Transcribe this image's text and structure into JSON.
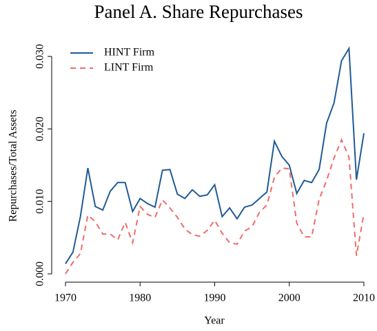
{
  "chart_data": {
    "type": "line",
    "title": "Panel A. Share Repurchases",
    "x_label": "Year",
    "y_label": "Repurchases/Total Assets",
    "x": [
      1970,
      1971,
      1972,
      1973,
      1974,
      1975,
      1976,
      1977,
      1978,
      1979,
      1980,
      1981,
      1982,
      1983,
      1984,
      1985,
      1986,
      1987,
      1988,
      1989,
      1990,
      1991,
      1992,
      1993,
      1994,
      1995,
      1996,
      1997,
      1998,
      1999,
      2000,
      2001,
      2002,
      2003,
      2004,
      2005,
      2006,
      2007,
      2008,
      2009,
      2010
    ],
    "series": [
      {
        "name": "HINT Firm",
        "color": "#1f5a96",
        "dash": false,
        "values": [
          0.0014,
          0.003,
          0.0079,
          0.0146,
          0.0093,
          0.0088,
          0.0114,
          0.0126,
          0.0126,
          0.0086,
          0.0104,
          0.0097,
          0.0092,
          0.0143,
          0.0144,
          0.011,
          0.0104,
          0.0116,
          0.0107,
          0.0109,
          0.0123,
          0.0079,
          0.0091,
          0.0076,
          0.0092,
          0.0095,
          0.0104,
          0.0113,
          0.0183,
          0.0162,
          0.015,
          0.0111,
          0.0129,
          0.0126,
          0.0144,
          0.0208,
          0.0236,
          0.0294,
          0.0311,
          0.013,
          0.0194
        ]
      },
      {
        "name": "LINT Firm",
        "color": "#f06a6a",
        "dash": true,
        "values": [
          0.0,
          0.0016,
          0.0028,
          0.0081,
          0.0072,
          0.0055,
          0.0055,
          0.0047,
          0.0071,
          0.0043,
          0.0093,
          0.0082,
          0.0078,
          0.0102,
          0.0091,
          0.0078,
          0.0062,
          0.0054,
          0.0052,
          0.006,
          0.0074,
          0.0056,
          0.0043,
          0.0041,
          0.0059,
          0.0065,
          0.0085,
          0.0095,
          0.0133,
          0.0146,
          0.0145,
          0.007,
          0.0051,
          0.0051,
          0.0103,
          0.0129,
          0.016,
          0.0185,
          0.0161,
          0.0025,
          0.0083
        ]
      }
    ],
    "xlim": [
      1970,
      2010
    ],
    "ylim": [
      0,
      0.03
    ],
    "xticks": [
      1970,
      1980,
      1990,
      2000,
      2010
    ],
    "yticks": [
      {
        "value": 0,
        "label": "0.000"
      },
      {
        "value": 0.01,
        "label": "0.010"
      },
      {
        "value": 0.02,
        "label": "0.020"
      },
      {
        "value": 0.03,
        "label": "0.030"
      }
    ],
    "grid": false,
    "legend_position": "top-left"
  }
}
